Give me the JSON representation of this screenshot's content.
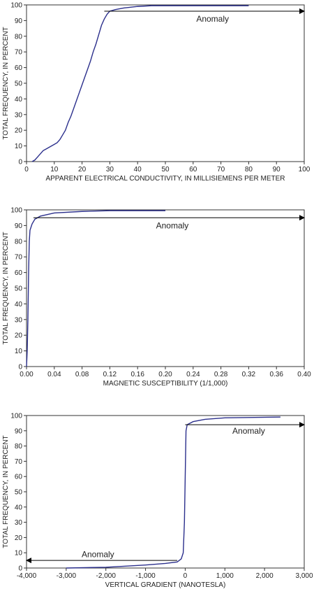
{
  "chart_data": [
    {
      "type": "line",
      "xlabel": "APPARENT ELECTRICAL CONDUCTIVITY, IN MILLISIEMENS PER METER",
      "ylabel": "TOTAL FREQUENCY, IN PERCENT",
      "x": [
        2,
        3,
        4,
        5,
        6,
        7,
        8,
        9,
        10,
        11,
        12,
        13,
        14,
        15,
        16,
        17,
        18,
        19,
        20,
        21,
        22,
        23,
        24,
        25,
        26,
        27,
        28,
        29,
        30,
        32,
        35,
        40,
        45,
        60,
        80
      ],
      "values": [
        0,
        1,
        3,
        5,
        7,
        8,
        9,
        10,
        11,
        12,
        14,
        17,
        20,
        25,
        29,
        34,
        39,
        44,
        49,
        54,
        59,
        64,
        70,
        75,
        81,
        87,
        91,
        94,
        96,
        97,
        98,
        99,
        99.5,
        99.5,
        99.5
      ],
      "color": "#2b2f8c",
      "xlim": [
        0,
        100
      ],
      "xticks": [
        0,
        10,
        20,
        30,
        40,
        50,
        60,
        70,
        80,
        90,
        100
      ],
      "ylim": [
        0,
        100
      ],
      "yticks": [
        0,
        10,
        20,
        30,
        40,
        50,
        60,
        70,
        80,
        90,
        100
      ],
      "annotations": [
        {
          "text": "Anomaly",
          "text_x": 67,
          "text_y": 91,
          "arrow_x": [
            28,
            100
          ],
          "arrow_y": 96
        }
      ]
    },
    {
      "type": "line",
      "xlabel": "MAGNETIC SUSCEPTIBILITY (1/1,000)",
      "ylabel": "TOTAL FREQUENCY, IN PERCENT",
      "x": [
        0.0,
        0.001,
        0.002,
        0.003,
        0.004,
        0.005,
        0.008,
        0.012,
        0.02,
        0.04,
        0.08,
        0.12,
        0.2
      ],
      "values": [
        0,
        10,
        30,
        60,
        80,
        87,
        91,
        94,
        96,
        98,
        99,
        99.5,
        99.5
      ],
      "color": "#2b2f8c",
      "xlim": [
        0,
        0.4
      ],
      "xticks": [
        {
          "value": 0,
          "label": "0.00"
        },
        {
          "value": 0.04,
          "label": "0.04"
        },
        {
          "value": 0.08,
          "label": "0.08"
        },
        {
          "value": 0.12,
          "label": "0.12"
        },
        {
          "value": 0.16,
          "label": "0.16"
        },
        {
          "value": 0.2,
          "label": "0.20"
        },
        {
          "value": 0.24,
          "label": "0.24"
        },
        {
          "value": 0.28,
          "label": "0.28"
        },
        {
          "value": 0.32,
          "label": "0.32"
        },
        {
          "value": 0.36,
          "label": "0.36"
        },
        {
          "value": 0.4,
          "label": "0.40"
        }
      ],
      "ylim": [
        0,
        100
      ],
      "yticks": [
        0,
        10,
        20,
        30,
        40,
        50,
        60,
        70,
        80,
        90,
        100
      ],
      "annotations": [
        {
          "text": "Anomaly",
          "text_x": 0.21,
          "text_y": 90,
          "arrow_x": [
            0.01,
            0.4
          ],
          "arrow_y": 95
        }
      ]
    },
    {
      "type": "line",
      "xlabel": "VERTICAL GRADIENT (NANOTESLA)",
      "ylabel": "TOTAL FREQUENCY, IN PERCENT",
      "x": [
        -3000,
        -2000,
        -1000,
        -500,
        -200,
        -100,
        -50,
        -20,
        0,
        20,
        50,
        200,
        500,
        1000,
        2400
      ],
      "values": [
        0,
        0.5,
        2,
        3,
        4,
        6,
        10,
        30,
        60,
        90,
        94,
        96,
        97.5,
        98.5,
        99
      ],
      "color": "#2b2f8c",
      "xlim": [
        -4000,
        3000
      ],
      "xticks": [
        {
          "value": -4000,
          "label": "-4,000"
        },
        {
          "value": -3000,
          "label": "-3,000"
        },
        {
          "value": -2000,
          "label": "-2,000"
        },
        {
          "value": -1000,
          "label": "-1,000"
        },
        0,
        {
          "value": 1000,
          "label": "1,000"
        },
        {
          "value": 2000,
          "label": "2,000"
        },
        {
          "value": 3000,
          "label": "3,000"
        }
      ],
      "ylim": [
        0,
        100
      ],
      "yticks": [
        0,
        10,
        20,
        30,
        40,
        50,
        60,
        70,
        80,
        90,
        100
      ],
      "annotations": [
        {
          "text": "Anomaly",
          "text_x": 1600,
          "text_y": 90,
          "arrow_x": [
            0,
            3000
          ],
          "arrow_y": 94
        },
        {
          "text": "Anomaly",
          "text_x": -2200,
          "text_y": 9,
          "arrow_x": [
            -200,
            -4000
          ],
          "arrow_y": 5
        }
      ]
    }
  ]
}
